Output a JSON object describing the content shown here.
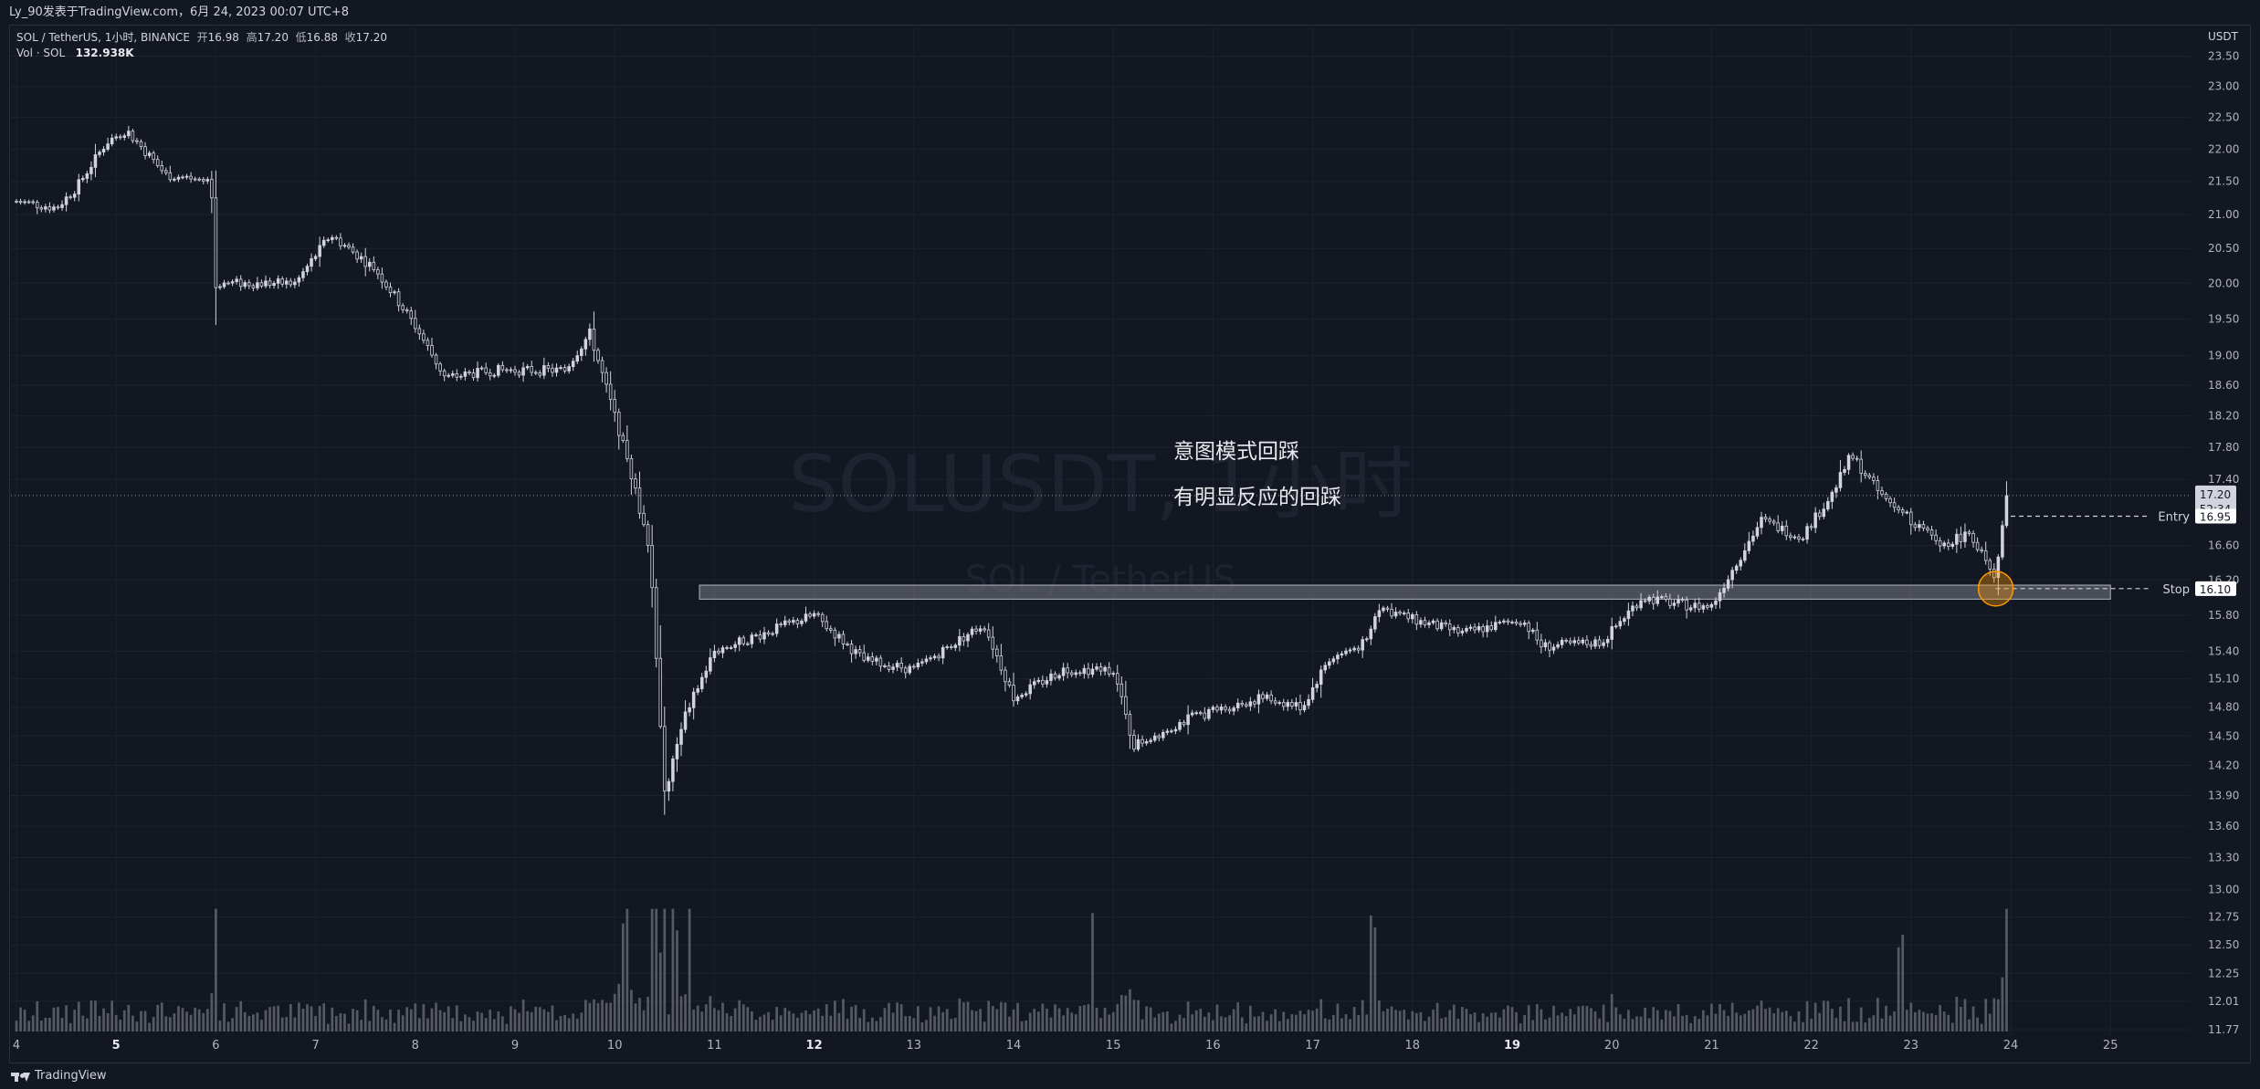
{
  "header": {
    "publisher_line": "Ly_90发表于TradingView.com，6月 24, 2023 00:07 UTC+8"
  },
  "legend": {
    "symbol_line": "SOL / TetherUS, 1小时, BINANCE",
    "open_label": "开",
    "open": "16.98",
    "high_label": "高",
    "high": "17.20",
    "low_label": "低",
    "low": "16.88",
    "close_label": "收",
    "close": "17.20",
    "volume_label": "Vol · SOL",
    "volume_value": "132.938K"
  },
  "watermark": {
    "symbol": "SOLUSDT, 1小时",
    "name": "SOL / TetherUS"
  },
  "annotations": {
    "line1": "意图模式回踩",
    "line2": "有明显反应的回踩"
  },
  "price_scale": {
    "currency": "USDT",
    "last_price": "17.20",
    "countdown": "52:34",
    "below_label": "16.95",
    "entry_label": "Entry",
    "stop_label": "Stop",
    "stop_price": "16.10"
  },
  "footer": {
    "brand": "TradingView"
  },
  "colors": {
    "background": "#131722",
    "candle": "#d1d4dc",
    "volume": "#5d606b",
    "grid": "#1e222d",
    "zone": "#787b86",
    "circle": "#ff9800"
  },
  "chart_data": {
    "type": "candlestick",
    "title": "SOL / TetherUS, 1小时, BINANCE",
    "x_ticks": [
      "4",
      "5",
      "6",
      "7",
      "8",
      "9",
      "10",
      "11",
      "12",
      "13",
      "14",
      "15",
      "16",
      "17",
      "18",
      "19",
      "20",
      "21",
      "22",
      "23",
      "24",
      "25"
    ],
    "x_ticks_bold": [
      "5",
      "12",
      "19"
    ],
    "y_ticks": [
      23.5,
      23.0,
      22.5,
      22.0,
      21.5,
      21.0,
      20.5,
      20.0,
      19.5,
      19.0,
      18.6,
      18.2,
      17.8,
      17.4,
      16.6,
      16.2,
      15.8,
      15.4,
      15.1,
      14.8,
      14.5,
      14.2,
      13.9,
      13.6,
      13.3,
      13.0,
      12.75,
      12.5,
      12.25,
      12.01,
      11.77
    ],
    "y_tick_labels": [
      "23.50",
      "23.00",
      "22.50",
      "22.00",
      "21.50",
      "21.00",
      "20.50",
      "20.00",
      "19.50",
      "19.00",
      "18.60",
      "18.20",
      "17.80",
      "17.40",
      "16.60",
      "16.20",
      "15.80",
      "15.40",
      "15.10",
      "14.80",
      "14.50",
      "14.20",
      "13.90",
      "13.60",
      "13.30",
      "13.00",
      "12.75",
      "12.50",
      "12.25",
      "12.01",
      "11.77"
    ],
    "y_scale": "log",
    "ylim": [
      11.77,
      23.6
    ],
    "price_path": [
      {
        "day": 4.0,
        "price": 21.2
      },
      {
        "day": 4.4,
        "price": 21.1
      },
      {
        "day": 4.6,
        "price": 21.4
      },
      {
        "day": 4.9,
        "price": 22.1
      },
      {
        "day": 5.1,
        "price": 22.3
      },
      {
        "day": 5.5,
        "price": 21.6
      },
      {
        "day": 5.95,
        "price": 21.5
      },
      {
        "day": 6.0,
        "price": 20.0
      },
      {
        "day": 6.4,
        "price": 20.0
      },
      {
        "day": 6.8,
        "price": 20.0
      },
      {
        "day": 7.15,
        "price": 20.7
      },
      {
        "day": 7.6,
        "price": 20.2
      },
      {
        "day": 8.0,
        "price": 19.4
      },
      {
        "day": 8.3,
        "price": 18.7
      },
      {
        "day": 8.8,
        "price": 18.8
      },
      {
        "day": 9.5,
        "price": 18.8
      },
      {
        "day": 9.75,
        "price": 19.3
      },
      {
        "day": 10.0,
        "price": 18.2
      },
      {
        "day": 10.2,
        "price": 17.3
      },
      {
        "day": 10.35,
        "price": 16.5
      },
      {
        "day": 10.5,
        "price": 13.9
      },
      {
        "day": 10.7,
        "price": 14.7
      },
      {
        "day": 11.0,
        "price": 15.4
      },
      {
        "day": 11.5,
        "price": 15.6
      },
      {
        "day": 12.0,
        "price": 15.8
      },
      {
        "day": 12.5,
        "price": 15.3
      },
      {
        "day": 13.0,
        "price": 15.2
      },
      {
        "day": 13.7,
        "price": 15.7
      },
      {
        "day": 14.0,
        "price": 14.9
      },
      {
        "day": 14.5,
        "price": 15.2
      },
      {
        "day": 15.0,
        "price": 15.2
      },
      {
        "day": 15.2,
        "price": 14.4
      },
      {
        "day": 15.8,
        "price": 14.7
      },
      {
        "day": 16.5,
        "price": 14.9
      },
      {
        "day": 16.9,
        "price": 14.8
      },
      {
        "day": 17.15,
        "price": 15.3
      },
      {
        "day": 17.55,
        "price": 15.5
      },
      {
        "day": 17.65,
        "price": 15.9
      },
      {
        "day": 18.0,
        "price": 15.75
      },
      {
        "day": 18.5,
        "price": 15.6
      },
      {
        "day": 19.1,
        "price": 15.75
      },
      {
        "day": 19.3,
        "price": 15.45
      },
      {
        "day": 19.9,
        "price": 15.5
      },
      {
        "day": 20.3,
        "price": 16.0
      },
      {
        "day": 20.8,
        "price": 15.9
      },
      {
        "day": 21.0,
        "price": 15.9
      },
      {
        "day": 21.2,
        "price": 16.3
      },
      {
        "day": 21.5,
        "price": 16.9
      },
      {
        "day": 21.9,
        "price": 16.7
      },
      {
        "day": 22.2,
        "price": 17.2
      },
      {
        "day": 22.4,
        "price": 17.7
      },
      {
        "day": 22.7,
        "price": 17.2
      },
      {
        "day": 23.0,
        "price": 16.9
      },
      {
        "day": 23.3,
        "price": 16.6
      },
      {
        "day": 23.6,
        "price": 16.75
      },
      {
        "day": 23.85,
        "price": 16.15
      },
      {
        "day": 23.95,
        "price": 17.2
      }
    ],
    "volume_spikes_days": [
      6.0,
      10.1,
      10.4,
      10.5,
      10.6,
      10.75,
      14.8,
      17.6,
      22.9,
      23.95
    ],
    "horizontal_zone": {
      "from_day": 10.85,
      "to_day": 25.0,
      "low": 15.98,
      "high": 16.14
    },
    "current_price": 17.2,
    "entry_price": 16.95,
    "stop_price": 16.1
  }
}
